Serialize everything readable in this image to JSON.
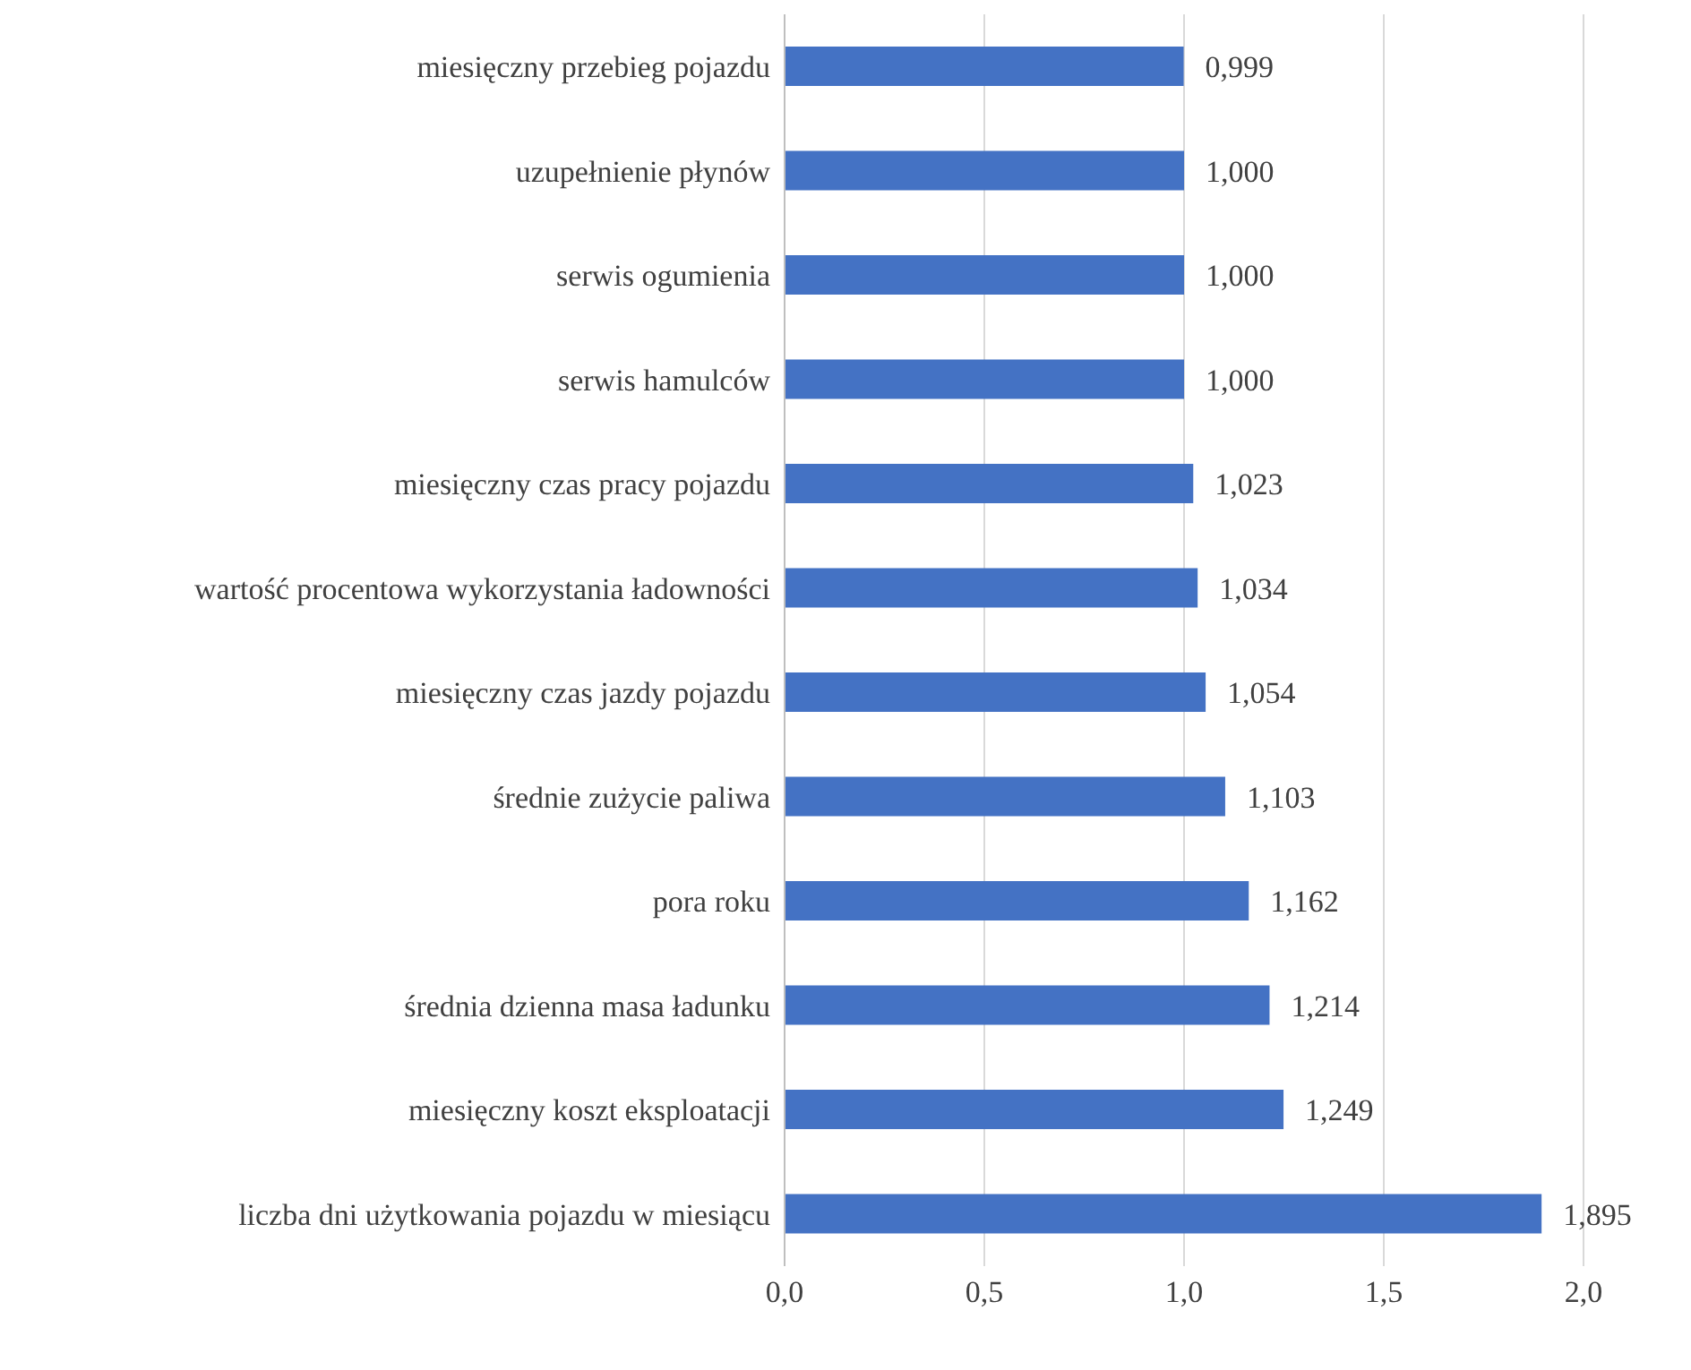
{
  "chart_data": {
    "type": "bar",
    "orientation": "horizontal",
    "categories": [
      "miesięczny przebieg pojazdu",
      "uzupełnienie płynów",
      "serwis ogumienia",
      "serwis hamulców",
      "miesięczny czas pracy pojazdu",
      "wartość procentowa wykorzystania ładowności",
      "miesięczny czas jazdy pojazdu",
      "średnie zużycie paliwa",
      "pora roku",
      "średnia dzienna masa ładunku",
      "miesięczny koszt eksploatacji",
      "liczba dni użytkowania pojazdu w miesiącu"
    ],
    "values": [
      0.999,
      1.0,
      1.0,
      1.0,
      1.023,
      1.034,
      1.054,
      1.103,
      1.162,
      1.214,
      1.249,
      1.895
    ],
    "value_labels": [
      "0,999",
      "1,000",
      "1,000",
      "1,000",
      "1,023",
      "1,034",
      "1,054",
      "1,103",
      "1,162",
      "1,214",
      "1,249",
      "1,895"
    ],
    "color": "#4472c4",
    "xlim": [
      0,
      2
    ],
    "xticks": [
      {
        "value": 0,
        "label": "0,0"
      },
      {
        "value": 0.5,
        "label": "0,5"
      },
      {
        "value": 1,
        "label": "1,0"
      },
      {
        "value": 1.5,
        "label": "1,5"
      },
      {
        "value": 2,
        "label": "2,0"
      }
    ],
    "grid": "x"
  }
}
